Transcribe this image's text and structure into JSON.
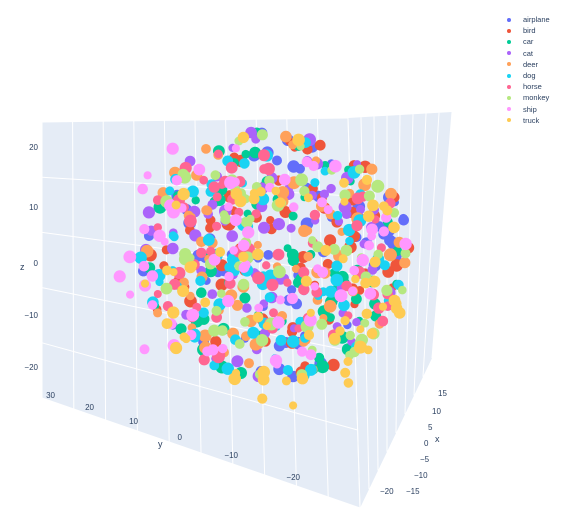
{
  "chart_data": {
    "type": "scatter",
    "subtype": "3d",
    "title": "",
    "axes": {
      "x": {
        "label": "x",
        "ticks": [
          "15",
          "10",
          "5",
          "0",
          "−5",
          "−10",
          "−15",
          "−20"
        ]
      },
      "y": {
        "label": "y",
        "ticks": [
          "30",
          "20",
          "10",
          "0",
          "−10",
          "−20"
        ]
      },
      "z": {
        "label": "z",
        "ticks": [
          "20",
          "10",
          "0",
          "−10",
          "−20"
        ]
      }
    },
    "xlim": [
      -20,
      15
    ],
    "ylim": [
      -28,
      32
    ],
    "zlim": [
      -22,
      24
    ],
    "grid": true,
    "legend_position": "top-right",
    "series": [
      {
        "name": "airplane",
        "color": "#636efa"
      },
      {
        "name": "bird",
        "color": "#EF553B"
      },
      {
        "name": "car",
        "color": "#00cc96"
      },
      {
        "name": "cat",
        "color": "#ab63fa"
      },
      {
        "name": "deer",
        "color": "#FFA15A"
      },
      {
        "name": "dog",
        "color": "#19d3f3"
      },
      {
        "name": "horse",
        "color": "#FF6692"
      },
      {
        "name": "monkey",
        "color": "#B6E880"
      },
      {
        "name": "ship",
        "color": "#FF97FF"
      },
      {
        "name": "truck",
        "color": "#FECB52"
      }
    ]
  }
}
